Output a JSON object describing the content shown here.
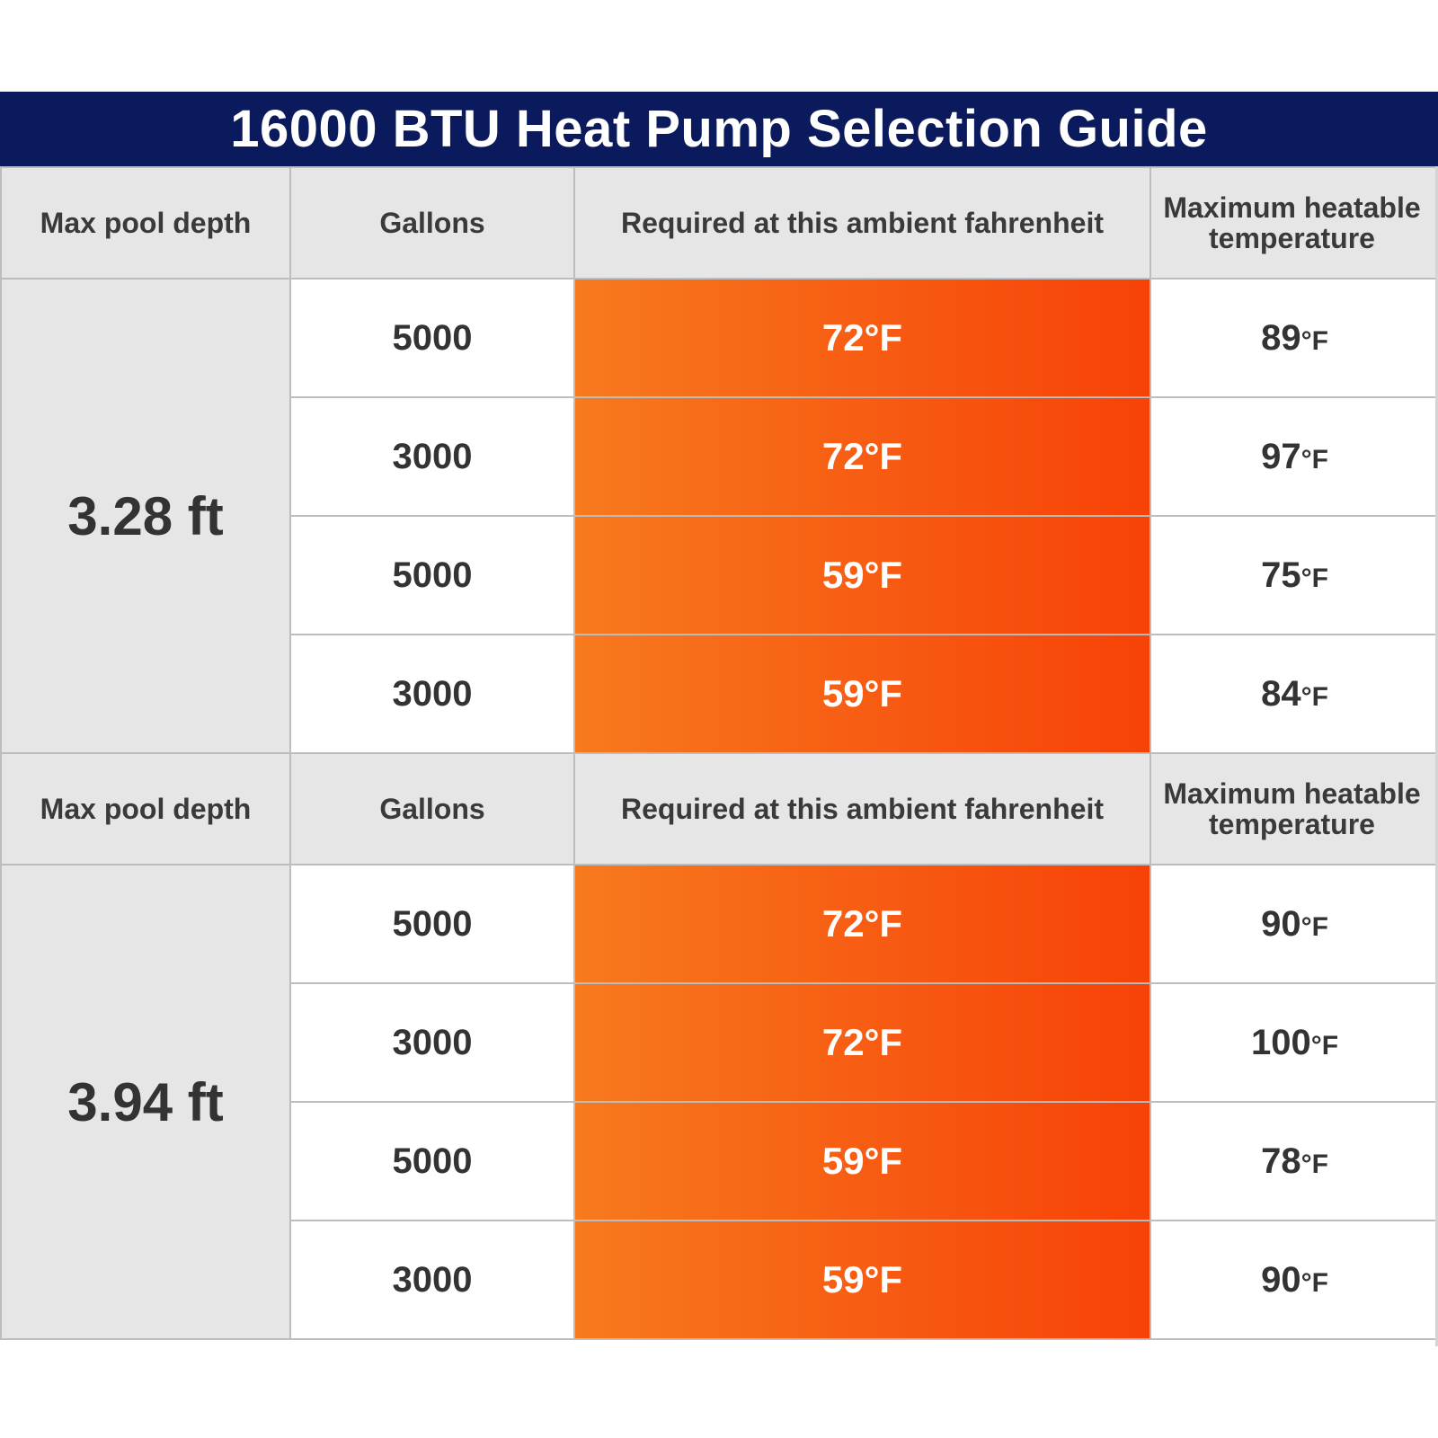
{
  "title": "16000 BTU Heat Pump Selection Guide",
  "columns": {
    "depth": "Max pool depth",
    "gallons": "Gallons",
    "ambient": "Required at this ambient fahrenheit",
    "max_temp": "Maximum heatable temperature"
  },
  "unit": "°F",
  "groups": [
    {
      "depth": "3.28 ft",
      "rows": [
        {
          "gallons": "5000",
          "ambient": "72°F",
          "max_temp": "89"
        },
        {
          "gallons": "3000",
          "ambient": "72°F",
          "max_temp": "97"
        },
        {
          "gallons": "5000",
          "ambient": "59°F",
          "max_temp": "75"
        },
        {
          "gallons": "3000",
          "ambient": "59°F",
          "max_temp": "84"
        }
      ]
    },
    {
      "depth": "3.94 ft",
      "rows": [
        {
          "gallons": "5000",
          "ambient": "72°F",
          "max_temp": "90"
        },
        {
          "gallons": "3000",
          "ambient": "72°F",
          "max_temp": "100"
        },
        {
          "gallons": "5000",
          "ambient": "59°F",
          "max_temp": "78"
        },
        {
          "gallons": "3000",
          "ambient": "59°F",
          "max_temp": "90"
        }
      ]
    }
  ],
  "colors": {
    "title_bg": "#0a1a5c",
    "header_bg": "#e6e6e6",
    "ambient_gradient_start": "#f77a1e",
    "ambient_gradient_end": "#f74207"
  }
}
